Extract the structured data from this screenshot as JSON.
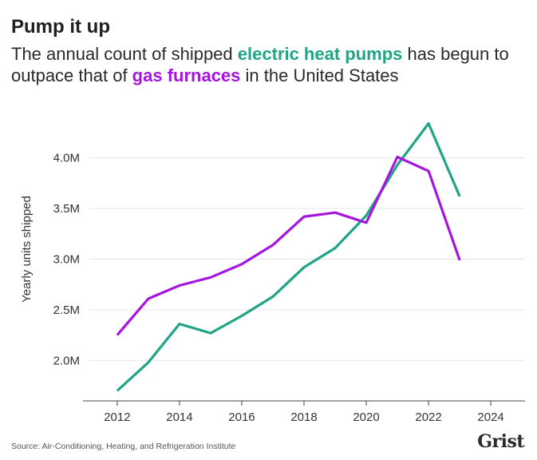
{
  "header": {
    "title": "Pump it up",
    "subtitle_before": "The annual count of shipped ",
    "subtitle_hl1": "electric heat pumps",
    "subtitle_mid": " has begun to outpace that of ",
    "subtitle_hl2": "gas furnaces",
    "subtitle_after": " in the United States"
  },
  "footer": {
    "source": "Source: Air-Conditioning, Heating, and Refrigeration Institute",
    "logo": "Grist"
  },
  "colors": {
    "heat_pumps": "#1fa585",
    "gas_furnaces": "#a415e0",
    "grid": "#e6e6e6",
    "axis": "#444444"
  },
  "chart_data": {
    "type": "line",
    "ylabel": "Yearly units shipped",
    "xlim": [
      2010.9,
      2025.1
    ],
    "ylim": [
      1.6,
      4.55
    ],
    "xticks": [
      2012,
      2014,
      2016,
      2018,
      2020,
      2022,
      2024
    ],
    "xtick_labels": [
      "2012",
      "2014",
      "2016",
      "2018",
      "2020",
      "2022",
      "2024"
    ],
    "yticks": [
      2.0,
      2.5,
      3.0,
      3.5,
      4.0
    ],
    "ytick_labels": [
      "2.0M",
      "2.5M",
      "3.0M",
      "3.5M",
      "4.0M"
    ],
    "grid": true,
    "series": [
      {
        "name": "electric heat pumps",
        "color": "#1fa585",
        "x": [
          2012,
          2013,
          2014,
          2015,
          2016,
          2017,
          2018,
          2019,
          2020,
          2021,
          2022,
          2023
        ],
        "y": [
          1.7,
          1.98,
          2.36,
          2.27,
          2.44,
          2.63,
          2.92,
          3.11,
          3.43,
          3.93,
          4.34,
          3.62
        ]
      },
      {
        "name": "gas furnaces",
        "color": "#a415e0",
        "x": [
          2012,
          2013,
          2014,
          2015,
          2016,
          2017,
          2018,
          2019,
          2020,
          2021,
          2022,
          2023
        ],
        "y": [
          2.25,
          2.61,
          2.74,
          2.82,
          2.95,
          3.14,
          3.42,
          3.46,
          3.36,
          4.01,
          3.87,
          2.99
        ]
      }
    ]
  }
}
